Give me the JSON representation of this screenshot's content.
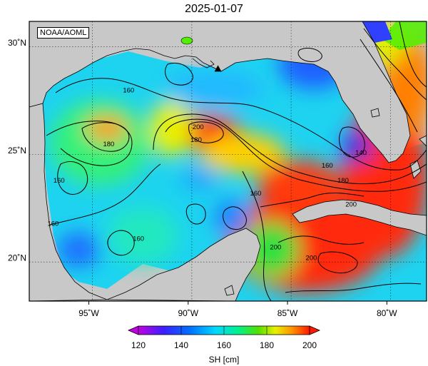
{
  "title": "2025-01-07",
  "credit": "NOAA/AOML",
  "map": {
    "lon_range": [
      -98,
      -78
    ],
    "lat_range": [
      18,
      31
    ],
    "lon_ticks": [
      {
        "value": -95,
        "label": "95˚W"
      },
      {
        "value": -90,
        "label": "90˚W"
      },
      {
        "value": -85,
        "label": "85˚W"
      },
      {
        "value": -80,
        "label": "80˚W"
      }
    ],
    "lat_ticks": [
      {
        "value": 30,
        "label": "30˚N"
      },
      {
        "value": 25,
        "label": "25˚N"
      },
      {
        "value": 20,
        "label": "20˚N"
      }
    ],
    "grid": true,
    "contour_labels": [
      {
        "text": "160",
        "lon": -93.0,
        "lat": 27.8
      },
      {
        "text": "180",
        "lon": -94.0,
        "lat": 25.3
      },
      {
        "text": "160",
        "lon": -96.5,
        "lat": 23.6
      },
      {
        "text": "160",
        "lon": -96.8,
        "lat": 21.6
      },
      {
        "text": "160",
        "lon": -92.5,
        "lat": 20.9
      },
      {
        "text": "200",
        "lon": -89.5,
        "lat": 26.1
      },
      {
        "text": "180",
        "lon": -89.6,
        "lat": 25.5
      },
      {
        "text": "160",
        "lon": -86.6,
        "lat": 23.0
      },
      {
        "text": "160",
        "lon": -83.0,
        "lat": 24.3
      },
      {
        "text": "180",
        "lon": -82.2,
        "lat": 23.6
      },
      {
        "text": "140",
        "lon": -81.3,
        "lat": 24.9
      },
      {
        "text": "200",
        "lon": -85.6,
        "lat": 20.5
      },
      {
        "text": "200",
        "lon": -83.8,
        "lat": 20.0
      },
      {
        "text": "200",
        "lon": -81.8,
        "lat": 22.5
      }
    ],
    "marker": {
      "symbol": "triangle",
      "lon": -88.5,
      "lat": 28.8
    }
  },
  "colorbar": {
    "label": "SH [cm]",
    "min": 120,
    "max": 200,
    "tick_labels": [
      "120",
      "140",
      "160",
      "180",
      "200"
    ],
    "colors": [
      "#d000d0",
      "#5000ff",
      "#0050ff",
      "#00c8ff",
      "#00ff90",
      "#40e000",
      "#e0f000",
      "#ffb000",
      "#ff3000",
      "#e00000"
    ]
  }
}
